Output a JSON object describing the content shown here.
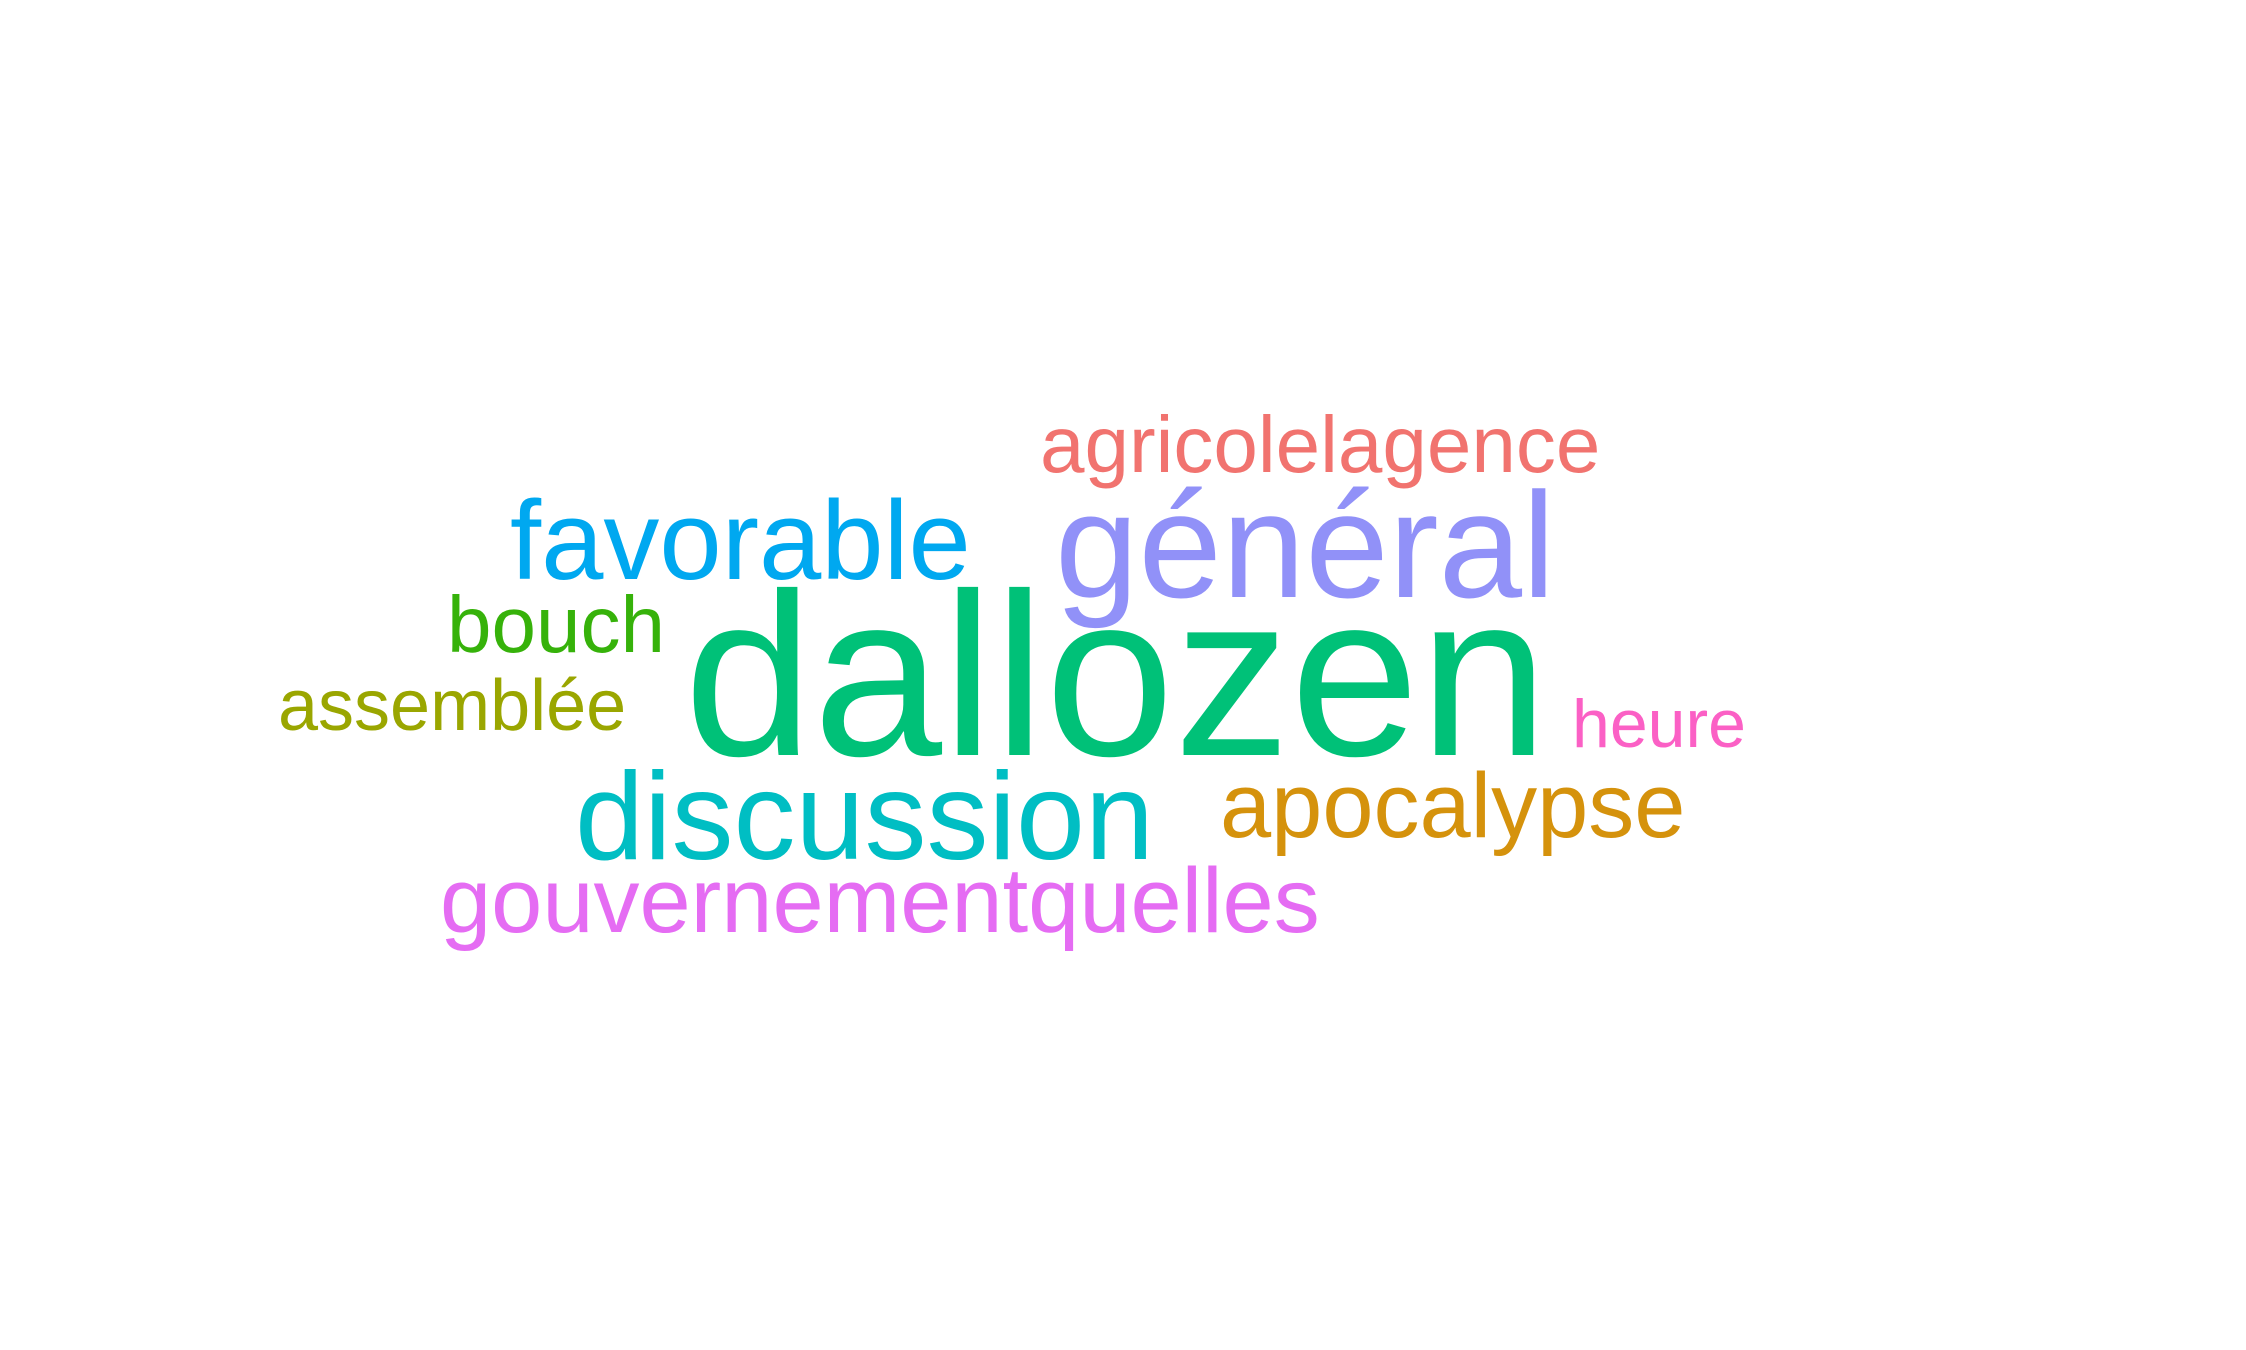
{
  "words": [
    {
      "key": "agricolelagence",
      "text": "agricolelagence",
      "color": "#F1736F"
    },
    {
      "key": "favorable",
      "text": "favorable",
      "color": "#00A8F0"
    },
    {
      "key": "general",
      "text": "général",
      "color": "#9191F8"
    },
    {
      "key": "bouch",
      "text": "bouch",
      "color": "#36B20A"
    },
    {
      "key": "dallozen",
      "text": "dallozen",
      "color": "#00C178"
    },
    {
      "key": "assemblee",
      "text": "assemblée",
      "color": "#9AA600"
    },
    {
      "key": "heure",
      "text": "heure",
      "color": "#FB60C5"
    },
    {
      "key": "discussion",
      "text": "discussion",
      "color": "#00BEC3"
    },
    {
      "key": "apocalypse",
      "text": "apocalypse",
      "color": "#D5920C"
    },
    {
      "key": "gouvernementquelles",
      "text": "gouvernementquelles",
      "color": "#E56CF3"
    }
  ]
}
